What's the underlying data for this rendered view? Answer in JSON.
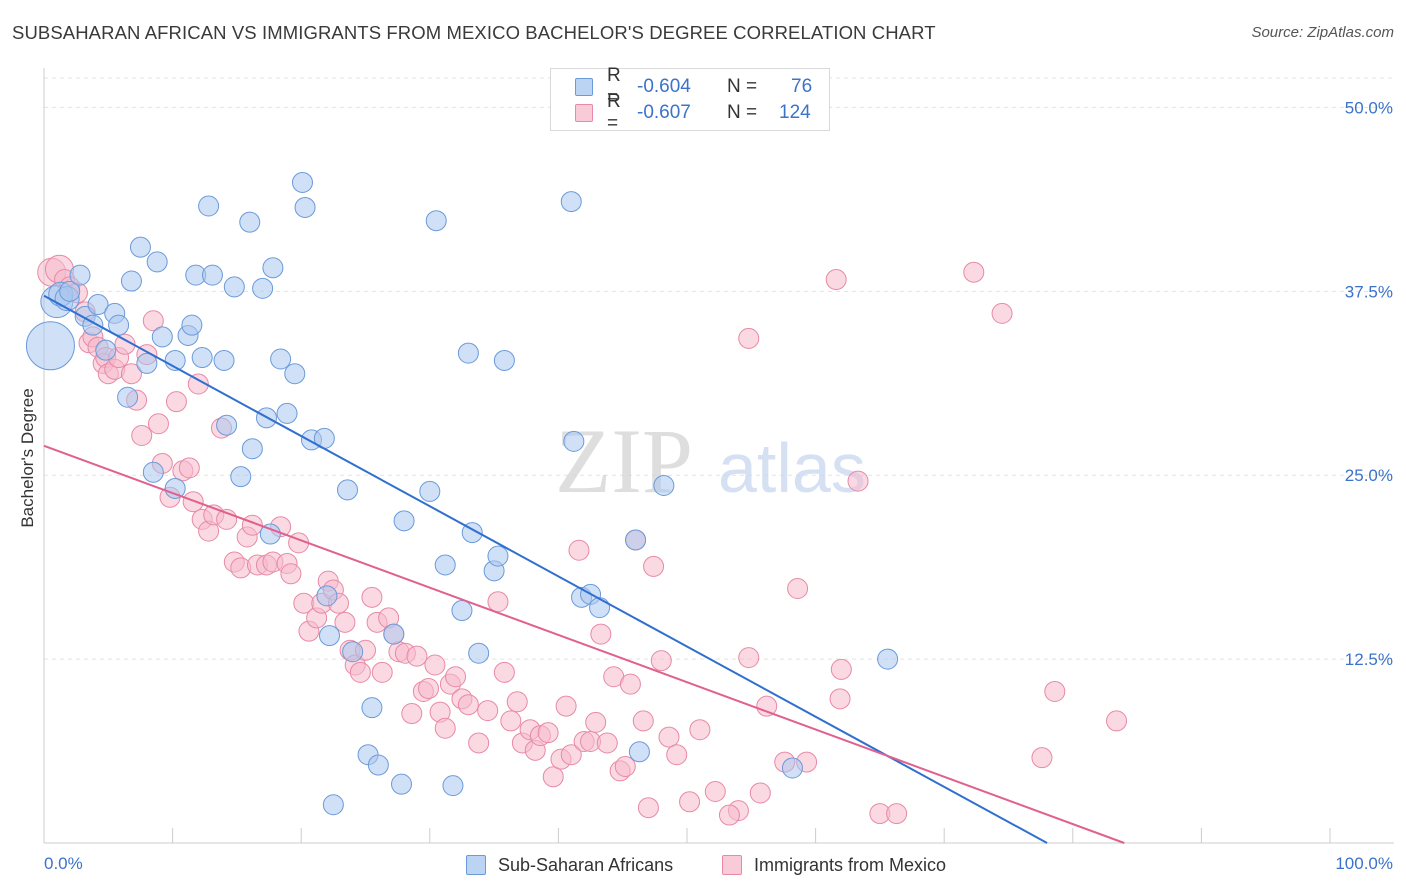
{
  "header": {
    "title": "SUBSAHARAN AFRICAN VS IMMIGRANTS FROM MEXICO BACHELOR'S DEGREE CORRELATION CHART",
    "source": "Source: ZipAtlas.com"
  },
  "watermark": {
    "zip": "ZIP",
    "atlas": "atlas"
  },
  "legend_box": {
    "rows": [
      {
        "r_label": "R =",
        "r_value": "-0.604",
        "n_label": "N =",
        "n_value": "76"
      },
      {
        "r_label": "R =",
        "r_value": "-0.607",
        "n_label": "N =",
        "n_value": "124"
      }
    ]
  },
  "bottom_legend": [
    "Sub-Saharan Africans",
    "Immigrants from Mexico"
  ],
  "colors": {
    "blue_fill": "#a9c6ef",
    "blue_stroke": "#6a9ad9",
    "blue_line": "#2f6fd0",
    "pink_fill": "#f6b9cc",
    "pink_stroke": "#e889a6",
    "pink_line": "#e0608e",
    "tick_label": "#3b73c9",
    "grid": "#e3e3e3"
  },
  "chart_data": {
    "type": "scatter",
    "title": "SUBSAHARAN AFRICAN VS IMMIGRANTS FROM MEXICO BACHELOR'S DEGREE CORRELATION CHART",
    "xlabel": "",
    "ylabel": "Bachelor's Degree",
    "xlim": [
      0,
      100
    ],
    "ylim": [
      0,
      52
    ],
    "x_tick_labels": [
      "0.0%",
      "100.0%"
    ],
    "y_ticks": [
      12.5,
      25.0,
      37.5,
      50.0
    ],
    "y_tick_labels": [
      "12.5%",
      "25.0%",
      "37.5%",
      "50.0%"
    ],
    "grid": true,
    "legend_position": "top-center",
    "series": [
      {
        "name": "Sub-Saharan Africans",
        "r": -0.604,
        "n": 76,
        "trend": {
          "x": [
            0,
            78
          ],
          "y": [
            37.2,
            0
          ]
        },
        "points": [
          [
            0.5,
            33.8,
            24
          ],
          [
            1.0,
            36.8,
            16
          ],
          [
            1.3,
            37.3,
            12
          ],
          [
            1.8,
            37.0,
            12
          ],
          [
            2.0,
            37.5,
            10
          ],
          [
            2.8,
            38.6,
            10
          ],
          [
            3.2,
            35.8,
            10
          ],
          [
            3.8,
            35.2,
            10
          ],
          [
            4.2,
            36.6,
            10
          ],
          [
            4.8,
            33.5,
            10
          ],
          [
            5.5,
            36.0,
            10
          ],
          [
            5.8,
            35.2,
            10
          ],
          [
            6.5,
            30.3,
            10
          ],
          [
            6.8,
            38.2,
            10
          ],
          [
            7.5,
            40.5,
            10
          ],
          [
            8.0,
            32.6,
            10
          ],
          [
            8.5,
            25.2,
            10
          ],
          [
            8.8,
            39.5,
            10
          ],
          [
            9.2,
            34.4,
            10
          ],
          [
            10.2,
            32.8,
            10
          ],
          [
            10.2,
            24.1,
            10
          ],
          [
            11.2,
            34.5,
            10
          ],
          [
            11.5,
            35.2,
            10
          ],
          [
            11.8,
            38.6,
            10
          ],
          [
            12.3,
            33.0,
            10
          ],
          [
            12.8,
            43.3,
            10
          ],
          [
            13.1,
            38.6,
            10
          ],
          [
            14.0,
            32.8,
            10
          ],
          [
            14.2,
            28.4,
            10
          ],
          [
            14.8,
            37.8,
            10
          ],
          [
            15.3,
            24.9,
            10
          ],
          [
            16.0,
            42.2,
            10
          ],
          [
            16.2,
            26.8,
            10
          ],
          [
            17.0,
            37.7,
            10
          ],
          [
            17.3,
            28.9,
            10
          ],
          [
            17.6,
            21.0,
            10
          ],
          [
            17.8,
            39.1,
            10
          ],
          [
            18.4,
            32.9,
            10
          ],
          [
            18.9,
            29.2,
            10
          ],
          [
            19.5,
            31.9,
            10
          ],
          [
            20.1,
            44.9,
            10
          ],
          [
            20.3,
            43.2,
            10
          ],
          [
            20.8,
            27.4,
            10
          ],
          [
            21.8,
            27.5,
            10
          ],
          [
            22.0,
            16.8,
            10
          ],
          [
            22.2,
            14.1,
            10
          ],
          [
            22.5,
            2.6,
            10
          ],
          [
            23.6,
            24.0,
            10
          ],
          [
            24.0,
            13.0,
            10
          ],
          [
            25.2,
            6.0,
            10
          ],
          [
            25.5,
            9.2,
            10
          ],
          [
            26.0,
            5.3,
            10
          ],
          [
            27.2,
            14.2,
            10
          ],
          [
            27.8,
            4.0,
            10
          ],
          [
            28.0,
            21.9,
            10
          ],
          [
            30.0,
            23.9,
            10
          ],
          [
            30.5,
            42.3,
            10
          ],
          [
            31.2,
            18.9,
            10
          ],
          [
            31.8,
            3.9,
            10
          ],
          [
            32.5,
            15.8,
            10
          ],
          [
            33.0,
            33.3,
            10
          ],
          [
            33.3,
            21.1,
            10
          ],
          [
            33.8,
            12.9,
            10
          ],
          [
            35.0,
            18.5,
            10
          ],
          [
            35.3,
            19.5,
            10
          ],
          [
            35.8,
            32.8,
            10
          ],
          [
            41.0,
            43.6,
            10
          ],
          [
            41.2,
            27.3,
            10
          ],
          [
            41.8,
            16.7,
            10
          ],
          [
            42.5,
            16.9,
            10
          ],
          [
            43.2,
            16.0,
            10
          ],
          [
            46.0,
            20.6,
            10
          ],
          [
            46.3,
            6.2,
            10
          ],
          [
            48.2,
            24.3,
            10
          ],
          [
            58.2,
            5.1,
            10
          ],
          [
            65.6,
            12.5,
            10
          ]
        ]
      },
      {
        "name": "Immigrants from Mexico",
        "r": -0.607,
        "n": 124,
        "trend": {
          "x": [
            0,
            84
          ],
          "y": [
            27.0,
            0
          ]
        },
        "points": [
          [
            0.6,
            38.8,
            14
          ],
          [
            1.2,
            39.0,
            14
          ],
          [
            1.6,
            38.3,
            10
          ],
          [
            2.0,
            37.8,
            10
          ],
          [
            2.6,
            37.4,
            10
          ],
          [
            3.2,
            36.1,
            10
          ],
          [
            3.5,
            34.0,
            10
          ],
          [
            3.8,
            34.4,
            10
          ],
          [
            4.2,
            33.7,
            10
          ],
          [
            4.6,
            32.6,
            10
          ],
          [
            4.8,
            33.0,
            10
          ],
          [
            5.0,
            31.9,
            10
          ],
          [
            5.5,
            32.2,
            10
          ],
          [
            5.8,
            33.0,
            10
          ],
          [
            6.3,
            33.9,
            10
          ],
          [
            6.8,
            31.9,
            10
          ],
          [
            7.2,
            30.1,
            10
          ],
          [
            7.6,
            27.7,
            10
          ],
          [
            8.0,
            33.2,
            10
          ],
          [
            8.5,
            35.5,
            10
          ],
          [
            8.9,
            28.5,
            10
          ],
          [
            9.2,
            25.8,
            10
          ],
          [
            9.8,
            23.5,
            10
          ],
          [
            10.3,
            30.0,
            10
          ],
          [
            10.8,
            25.3,
            10
          ],
          [
            11.3,
            25.5,
            10
          ],
          [
            11.6,
            23.2,
            10
          ],
          [
            12.0,
            31.2,
            10
          ],
          [
            12.3,
            22.0,
            10
          ],
          [
            12.8,
            21.2,
            10
          ],
          [
            13.2,
            22.3,
            10
          ],
          [
            13.8,
            28.2,
            10
          ],
          [
            14.2,
            22.0,
            10
          ],
          [
            14.8,
            19.1,
            10
          ],
          [
            15.3,
            18.7,
            10
          ],
          [
            15.8,
            20.8,
            10
          ],
          [
            16.2,
            21.6,
            10
          ],
          [
            16.6,
            18.9,
            10
          ],
          [
            17.3,
            18.9,
            10
          ],
          [
            17.8,
            19.1,
            10
          ],
          [
            18.4,
            21.5,
            10
          ],
          [
            18.9,
            19.0,
            10
          ],
          [
            19.2,
            18.3,
            10
          ],
          [
            19.8,
            20.4,
            10
          ],
          [
            20.2,
            16.3,
            10
          ],
          [
            20.6,
            14.4,
            10
          ],
          [
            21.2,
            15.3,
            10
          ],
          [
            21.6,
            16.3,
            10
          ],
          [
            22.1,
            17.8,
            10
          ],
          [
            22.5,
            17.2,
            10
          ],
          [
            22.9,
            16.3,
            10
          ],
          [
            23.4,
            15.0,
            10
          ],
          [
            23.8,
            13.1,
            10
          ],
          [
            24.2,
            12.1,
            10
          ],
          [
            24.6,
            11.6,
            10
          ],
          [
            25.0,
            13.1,
            10
          ],
          [
            25.5,
            16.7,
            10
          ],
          [
            25.9,
            15.0,
            10
          ],
          [
            26.3,
            11.6,
            10
          ],
          [
            26.8,
            15.3,
            10
          ],
          [
            27.2,
            14.2,
            10
          ],
          [
            27.6,
            13.0,
            10
          ],
          [
            28.1,
            12.9,
            10
          ],
          [
            28.6,
            8.8,
            10
          ],
          [
            29.0,
            12.7,
            10
          ],
          [
            29.5,
            10.3,
            10
          ],
          [
            29.9,
            10.5,
            10
          ],
          [
            30.4,
            12.1,
            10
          ],
          [
            30.8,
            8.9,
            10
          ],
          [
            31.2,
            7.8,
            10
          ],
          [
            31.6,
            10.8,
            10
          ],
          [
            32.0,
            11.3,
            10
          ],
          [
            32.5,
            9.8,
            10
          ],
          [
            33.0,
            9.4,
            10
          ],
          [
            33.8,
            6.8,
            10
          ],
          [
            34.5,
            9.0,
            10
          ],
          [
            35.3,
            16.4,
            10
          ],
          [
            35.8,
            11.6,
            10
          ],
          [
            36.3,
            8.3,
            10
          ],
          [
            36.8,
            9.6,
            10
          ],
          [
            37.2,
            6.8,
            10
          ],
          [
            37.8,
            7.7,
            10
          ],
          [
            38.2,
            6.3,
            10
          ],
          [
            38.6,
            7.3,
            10
          ],
          [
            39.2,
            7.5,
            10
          ],
          [
            39.6,
            4.5,
            10
          ],
          [
            40.2,
            5.7,
            10
          ],
          [
            40.6,
            9.3,
            10
          ],
          [
            41.0,
            6.0,
            10
          ],
          [
            41.6,
            19.9,
            10
          ],
          [
            42.0,
            6.9,
            10
          ],
          [
            42.5,
            6.9,
            10
          ],
          [
            42.9,
            8.2,
            10
          ],
          [
            43.3,
            14.2,
            10
          ],
          [
            43.8,
            6.8,
            10
          ],
          [
            44.3,
            11.3,
            10
          ],
          [
            44.8,
            4.9,
            10
          ],
          [
            45.2,
            5.2,
            10
          ],
          [
            45.6,
            10.8,
            10
          ],
          [
            46.0,
            20.6,
            10
          ],
          [
            46.6,
            8.3,
            10
          ],
          [
            47.0,
            2.4,
            10
          ],
          [
            47.4,
            18.8,
            10
          ],
          [
            48.0,
            12.4,
            10
          ],
          [
            48.6,
            7.2,
            10
          ],
          [
            49.2,
            6.0,
            10
          ],
          [
            50.2,
            2.8,
            10
          ],
          [
            51.0,
            7.7,
            10
          ],
          [
            52.2,
            3.5,
            10
          ],
          [
            54.0,
            2.2,
            10
          ],
          [
            56.2,
            9.3,
            10
          ],
          [
            57.6,
            5.5,
            10
          ],
          [
            58.6,
            17.3,
            10
          ],
          [
            59.3,
            5.5,
            10
          ],
          [
            62.0,
            11.8,
            10
          ],
          [
            63.3,
            24.6,
            10
          ],
          [
            65.0,
            2.0,
            10
          ],
          [
            66.3,
            2.0,
            10
          ],
          [
            72.3,
            38.8,
            10
          ],
          [
            74.5,
            36.0,
            10
          ],
          [
            77.6,
            5.8,
            10
          ],
          [
            78.6,
            10.3,
            10
          ],
          [
            83.4,
            8.3,
            10
          ],
          [
            61.6,
            38.3,
            10
          ],
          [
            54.8,
            34.3,
            10
          ],
          [
            54.8,
            12.6,
            10
          ],
          [
            61.9,
            9.8,
            10
          ],
          [
            55.7,
            3.4,
            10
          ],
          [
            53.3,
            1.9,
            10
          ]
        ]
      }
    ]
  }
}
